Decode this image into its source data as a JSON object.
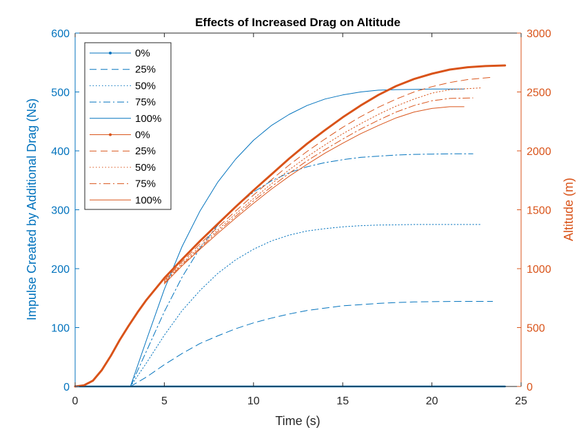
{
  "chart_data": {
    "type": "line",
    "title": "Effects of Increased Drag on Altitude",
    "xlabel": "Time (s)",
    "ylabel_left": "Impulse Created by Additional Drag (Ns)",
    "ylabel_right": "Altitude (m)",
    "xlim": [
      0,
      25
    ],
    "ylim_left": [
      0,
      600
    ],
    "ylim_right": [
      0,
      3000
    ],
    "xticks": [
      0,
      5,
      10,
      15,
      20,
      25
    ],
    "yticks_left": [
      0,
      100,
      200,
      300,
      400,
      500,
      600
    ],
    "yticks_right": [
      0,
      500,
      1000,
      1500,
      2000,
      2500,
      3000
    ],
    "grid": false,
    "legend_position": "top-left",
    "colors": {
      "left": "#0072BD",
      "right": "#D95319"
    },
    "series": [
      {
        "name": "0%",
        "axis": "left",
        "style": "solid-dot",
        "x": [
          0,
          24.1
        ],
        "y": [
          0,
          0
        ]
      },
      {
        "name": "25%",
        "axis": "left",
        "style": "dashed",
        "x": [
          3.1,
          4,
          5,
          6,
          7,
          8,
          9,
          10,
          11,
          12,
          13,
          14,
          15,
          16,
          17,
          18,
          19,
          20,
          21,
          22,
          23.4
        ],
        "y": [
          0,
          16,
          37,
          56,
          73,
          86,
          98,
          108,
          116,
          123,
          129,
          133,
          137,
          139,
          141,
          142.5,
          143.5,
          144,
          144.3,
          144.5,
          144.5
        ]
      },
      {
        "name": "50%",
        "axis": "left",
        "style": "dotted",
        "x": [
          3.1,
          4,
          5,
          6,
          7,
          8,
          9,
          10,
          11,
          12,
          13,
          14,
          15,
          16,
          17,
          18,
          19,
          20,
          21,
          22.8
        ],
        "y": [
          0,
          40,
          87,
          129,
          163,
          192,
          215,
          233,
          247,
          257,
          264,
          268,
          271,
          273,
          274,
          274.5,
          275,
          275,
          275,
          275
        ]
      },
      {
        "name": "75%",
        "axis": "left",
        "style": "dashdot",
        "x": [
          3.1,
          4,
          5,
          6,
          7,
          8,
          9,
          10,
          11,
          12,
          13,
          14,
          15,
          16,
          17,
          18,
          19,
          20,
          21,
          22.3
        ],
        "y": [
          0,
          60,
          127,
          186,
          235,
          274,
          305,
          330,
          349,
          363,
          373,
          380,
          385,
          389,
          391,
          393,
          394,
          394.5,
          395,
          395
        ]
      },
      {
        "name": "100%",
        "axis": "left",
        "style": "solid",
        "x": [
          3.1,
          4,
          5,
          6,
          7,
          8,
          9,
          10,
          11,
          12,
          13,
          14,
          15,
          16,
          17,
          18,
          19,
          20,
          21,
          21.8
        ],
        "y": [
          0,
          79,
          165,
          238,
          298,
          347,
          386,
          418,
          443,
          462,
          477,
          488,
          495,
          500,
          503,
          504,
          504.5,
          505,
          505,
          505
        ]
      },
      {
        "name": "0%",
        "axis": "right",
        "style": "solid-dot",
        "x": [
          0,
          0.5,
          1,
          1.5,
          2,
          2.5,
          3,
          3.5,
          4,
          5,
          6,
          7,
          8,
          9,
          10,
          11,
          12,
          13,
          14,
          15,
          16,
          17,
          18,
          19,
          20,
          21,
          22,
          23,
          24.1
        ],
        "y": [
          0,
          10,
          50,
          140,
          260,
          395,
          515,
          630,
          735,
          920,
          1080,
          1235,
          1380,
          1525,
          1665,
          1800,
          1935,
          2060,
          2175,
          2285,
          2385,
          2475,
          2550,
          2610,
          2655,
          2690,
          2710,
          2720,
          2725
        ]
      },
      {
        "name": "25%",
        "axis": "right",
        "style": "dashed",
        "x": [
          5,
          6,
          7,
          8,
          9,
          10,
          11,
          12,
          13,
          14,
          15,
          16,
          17,
          18,
          19,
          20,
          21,
          22,
          23.4
        ],
        "y": [
          900,
          1060,
          1210,
          1350,
          1490,
          1625,
          1755,
          1880,
          1995,
          2100,
          2200,
          2290,
          2370,
          2440,
          2500,
          2545,
          2580,
          2605,
          2625
        ]
      },
      {
        "name": "50%",
        "axis": "right",
        "style": "dotted",
        "x": [
          5,
          6,
          7,
          8,
          9,
          10,
          11,
          12,
          13,
          14,
          15,
          16,
          17,
          18,
          19,
          20,
          21,
          22.8
        ],
        "y": [
          890,
          1045,
          1190,
          1330,
          1465,
          1595,
          1720,
          1840,
          1950,
          2050,
          2145,
          2230,
          2310,
          2380,
          2440,
          2490,
          2520,
          2535
        ]
      },
      {
        "name": "75%",
        "axis": "right",
        "style": "dashdot",
        "x": [
          5,
          6,
          7,
          8,
          9,
          10,
          11,
          12,
          13,
          14,
          15,
          16,
          17,
          18,
          19,
          20,
          21,
          22.3
        ],
        "y": [
          880,
          1035,
          1175,
          1315,
          1445,
          1575,
          1695,
          1810,
          1915,
          2010,
          2100,
          2185,
          2260,
          2330,
          2385,
          2425,
          2445,
          2450
        ]
      },
      {
        "name": "100%",
        "axis": "right",
        "style": "solid",
        "x": [
          5,
          6,
          7,
          8,
          9,
          10,
          11,
          12,
          13,
          14,
          15,
          16,
          17,
          18,
          19,
          20,
          21,
          21.8
        ],
        "y": [
          870,
          1025,
          1165,
          1300,
          1430,
          1555,
          1675,
          1785,
          1885,
          1980,
          2065,
          2145,
          2215,
          2280,
          2330,
          2360,
          2375,
          2375
        ]
      }
    ]
  }
}
